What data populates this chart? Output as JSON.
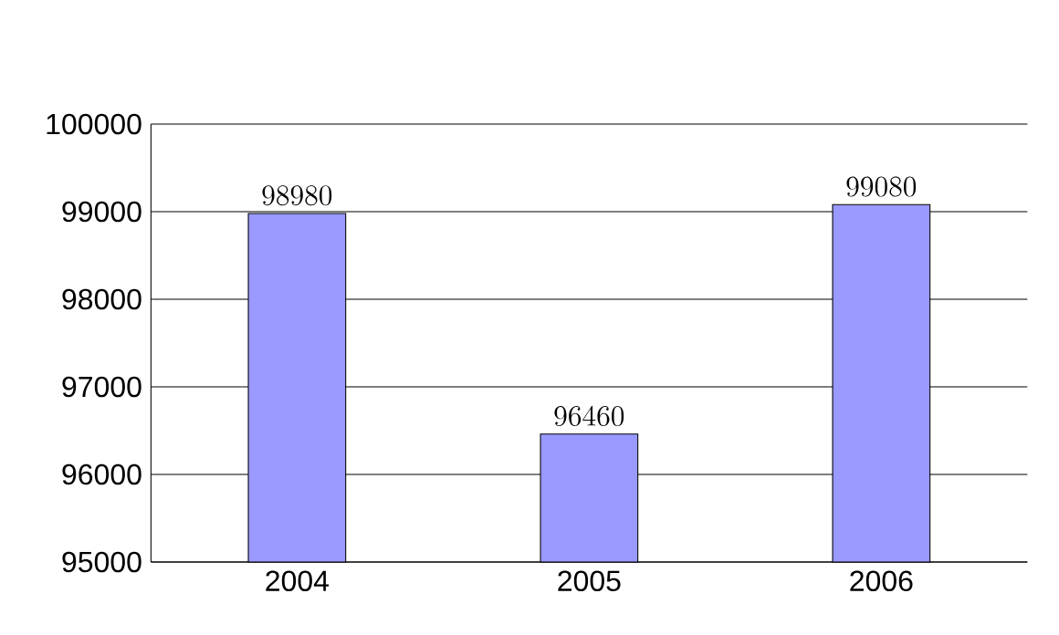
{
  "chart_data": {
    "type": "bar",
    "categories": [
      "2004",
      "2005",
      "2006"
    ],
    "values": [
      98980,
      96460,
      99080
    ],
    "color": "#9999ff",
    "ylim": [
      95000,
      100000
    ],
    "yticks": [
      95000,
      96000,
      97000,
      98000,
      99000,
      100000
    ],
    "grid": "y",
    "data_labels": true
  }
}
